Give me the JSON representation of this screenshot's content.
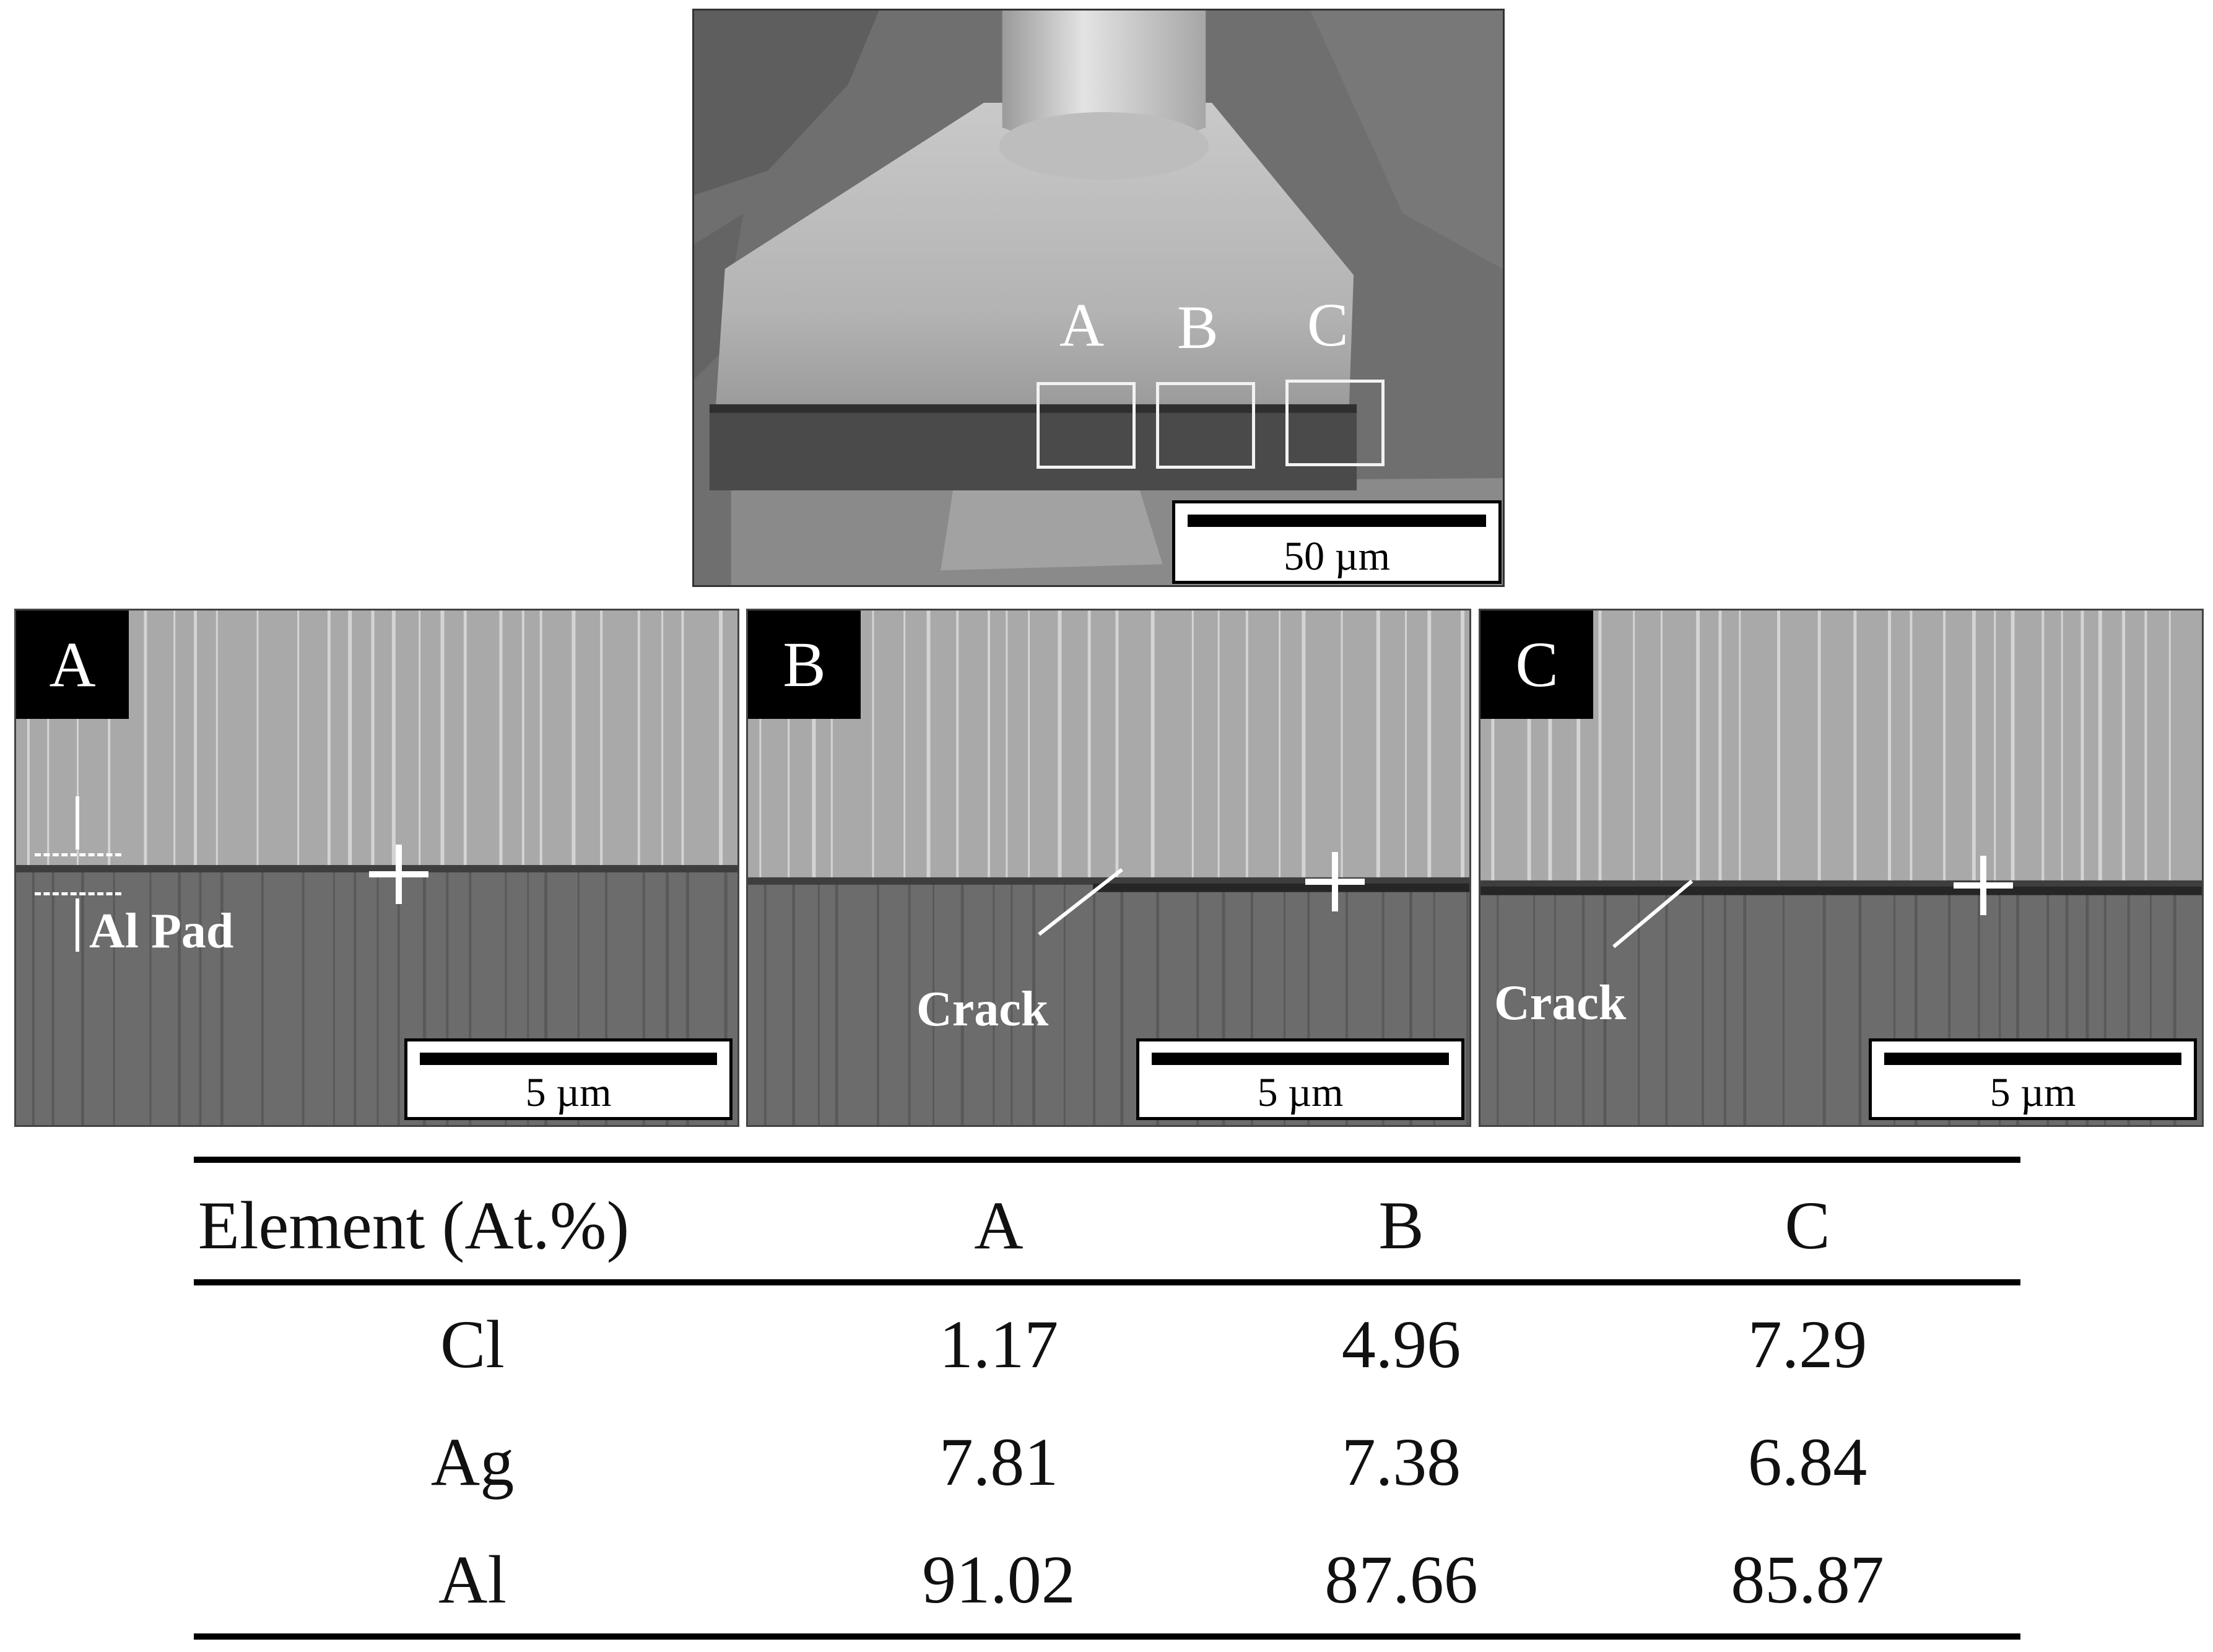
{
  "overview": {
    "roi_labels": [
      "A",
      "B",
      "C"
    ],
    "scale_label": "50 µm"
  },
  "panels": [
    {
      "tag": "A",
      "scale_label": "5 µm",
      "annotation": "Al Pad"
    },
    {
      "tag": "B",
      "scale_label": "5 µm",
      "annotation": "Crack"
    },
    {
      "tag": "C",
      "scale_label": "5 µm",
      "annotation": "Crack"
    }
  ],
  "table": {
    "headers": [
      "Element  (At.%)",
      "A",
      "B",
      "C"
    ],
    "rows": [
      {
        "element": "Cl",
        "values": [
          "1.17",
          "4.96",
          "7.29"
        ]
      },
      {
        "element": "Ag",
        "values": [
          "7.81",
          "7.38",
          "6.84"
        ]
      },
      {
        "element": "Al",
        "values": [
          "91.02",
          "87.66",
          "85.87"
        ]
      }
    ]
  }
}
